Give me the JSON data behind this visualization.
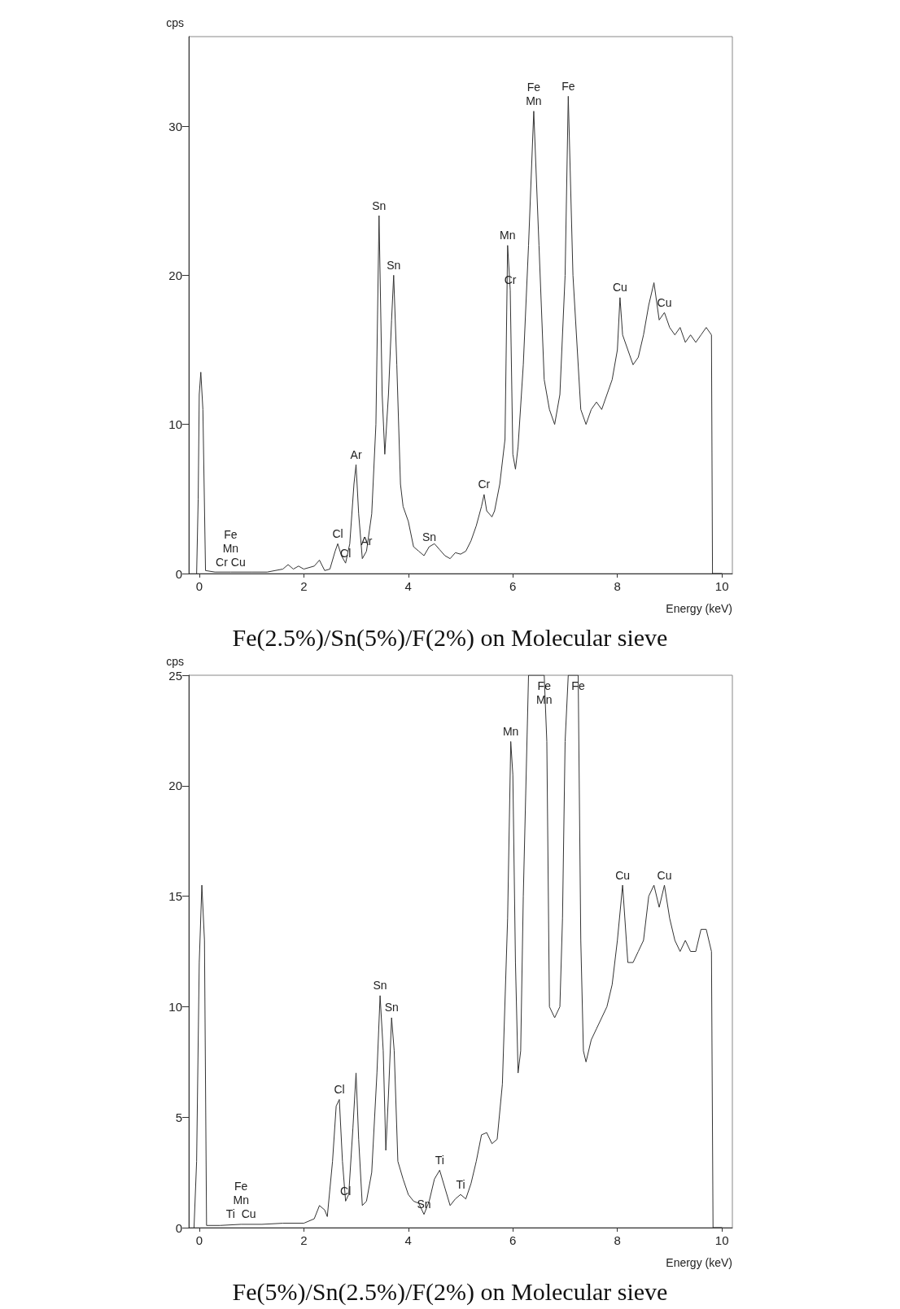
{
  "chart_data": [
    {
      "type": "line",
      "title": "Fe(2.5%)/Sn(5%)/F(2%) on Molecular sieve",
      "xlabel": "Energy (keV)",
      "ylabel": "cps",
      "xlim": [
        -0.2,
        10.2
      ],
      "xticks": [
        0,
        2,
        4,
        6,
        8,
        10
      ],
      "ylim": [
        0,
        36
      ],
      "yticks": [
        0,
        10,
        20,
        30
      ],
      "grid": false,
      "marker": "none",
      "line_style": "solid",
      "series": [
        {
          "color": "#333333",
          "x": [
            -0.05,
            -0.02,
            0,
            0.03,
            0.07,
            0.12,
            0.3,
            0.6,
            1,
            1.3,
            1.6,
            1.7,
            1.8,
            1.9,
            2,
            2.2,
            2.3,
            2.4,
            2.5,
            2.6,
            2.65,
            2.72,
            2.8,
            2.88,
            2.96,
            3,
            3.05,
            3.12,
            3.2,
            3.3,
            3.38,
            3.44,
            3.5,
            3.55,
            3.62,
            3.68,
            3.72,
            3.78,
            3.85,
            3.9,
            4,
            4.1,
            4.2,
            4.3,
            4.4,
            4.5,
            4.6,
            4.7,
            4.8,
            4.9,
            5,
            5.1,
            5.2,
            5.3,
            5.4,
            5.45,
            5.5,
            5.6,
            5.65,
            5.75,
            5.85,
            5.9,
            5.95,
            6,
            6.05,
            6.1,
            6.2,
            6.3,
            6.4,
            6.5,
            6.6,
            6.7,
            6.8,
            6.9,
            7,
            7.06,
            7.15,
            7.3,
            7.4,
            7.5,
            7.6,
            7.7,
            7.8,
            7.9,
            8,
            8.05,
            8.1,
            8.2,
            8.3,
            8.4,
            8.5,
            8.6,
            8.7,
            8.8,
            8.9,
            9,
            9.1,
            9.2,
            9.3,
            9.4,
            9.5,
            9.6,
            9.7,
            9.8,
            9.82,
            10
          ],
          "values": [
            0,
            5,
            12,
            13.5,
            11,
            0.2,
            0.1,
            0.1,
            0.1,
            0.1,
            0.3,
            0.6,
            0.3,
            0.5,
            0.3,
            0.5,
            0.9,
            0.2,
            0.3,
            1.5,
            2,
            1.2,
            0.7,
            2,
            6,
            7.3,
            4,
            1,
            1.5,
            4,
            10,
            24,
            12,
            8,
            12,
            17,
            20,
            14,
            6,
            4.5,
            3.5,
            1.8,
            1.5,
            1.2,
            1.8,
            2,
            1.6,
            1.2,
            1,
            1.4,
            1.3,
            1.5,
            2.2,
            3.2,
            4.5,
            5.3,
            4.2,
            3.8,
            4.2,
            6,
            9,
            22,
            19,
            8,
            7,
            8.5,
            14,
            22,
            31,
            22,
            13,
            11,
            10,
            12,
            20,
            32,
            20,
            11,
            10,
            11,
            11.5,
            11,
            12,
            13,
            15,
            18.5,
            16,
            15,
            14,
            14.5,
            16,
            18,
            19.5,
            17,
            17.5,
            16.5,
            16,
            16.5,
            15.5,
            16,
            15.5,
            16,
            16.5,
            16,
            0,
            0
          ]
        }
      ],
      "annotations": [
        {
          "text": "Fe\nMn",
          "x": 6.4,
          "y": 31
        },
        {
          "text": "Fe",
          "x": 7.06,
          "y": 32
        },
        {
          "text": "Sn",
          "x": 3.44,
          "y": 24
        },
        {
          "text": "Sn",
          "x": 3.72,
          "y": 20
        },
        {
          "text": "Mn",
          "x": 5.9,
          "y": 22
        },
        {
          "text": "Cr",
          "x": 5.95,
          "y": 19
        },
        {
          "text": "Cu",
          "x": 8.05,
          "y": 18.5
        },
        {
          "text": "Cu",
          "x": 8.9,
          "y": 17.5
        },
        {
          "text": "Ar",
          "x": 3,
          "y": 7.3
        },
        {
          "text": "Cr",
          "x": 5.45,
          "y": 5.3
        },
        {
          "text": "Cl",
          "x": 2.65,
          "y": 2
        },
        {
          "text": "Cl",
          "x": 2.8,
          "y": 0.7
        },
        {
          "text": "Ar",
          "x": 3.2,
          "y": 1.5
        },
        {
          "text": "Sn",
          "x": 4.4,
          "y": 1.8
        },
        {
          "text": "Fe\nMn\nCr Cu",
          "x": 0.6,
          "y": 0.1
        }
      ]
    },
    {
      "type": "line",
      "title": "Fe(5%)/Sn(2.5%)/F(2%) on Molecular sieve",
      "xlabel": "Energy (keV)",
      "ylabel": "cps",
      "xlim": [
        -0.2,
        10.2
      ],
      "xticks": [
        0,
        2,
        4,
        6,
        8,
        10
      ],
      "ylim": [
        0,
        25
      ],
      "yticks": [
        0,
        5,
        10,
        15,
        20,
        25
      ],
      "grid": false,
      "marker": "none",
      "line_style": "solid",
      "series": [
        {
          "color": "#333333",
          "x": [
            -0.1,
            -0.05,
            0,
            0.05,
            0.1,
            0.14,
            0.4,
            0.8,
            1.2,
            1.6,
            2,
            2.2,
            2.3,
            2.4,
            2.45,
            2.55,
            2.62,
            2.68,
            2.74,
            2.8,
            2.86,
            2.94,
            3,
            3.05,
            3.12,
            3.2,
            3.3,
            3.4,
            3.46,
            3.52,
            3.57,
            3.62,
            3.68,
            3.73,
            3.8,
            3.9,
            4,
            4.1,
            4.2,
            4.3,
            4.4,
            4.5,
            4.6,
            4.7,
            4.8,
            4.9,
            5,
            5.1,
            5.2,
            5.3,
            5.4,
            5.5,
            5.6,
            5.7,
            5.8,
            5.9,
            5.96,
            6,
            6.05,
            6.1,
            6.15,
            6.2,
            6.3,
            6.6,
            6.65,
            6.7,
            6.8,
            6.9,
            6.95,
            7,
            7.06,
            7.25,
            7.3,
            7.35,
            7.4,
            7.5,
            7.6,
            7.7,
            7.8,
            7.9,
            8,
            8.1,
            8.2,
            8.3,
            8.4,
            8.5,
            8.6,
            8.7,
            8.8,
            8.9,
            9,
            9.1,
            9.2,
            9.3,
            9.4,
            9.5,
            9.6,
            9.7,
            9.8,
            9.83,
            10
          ],
          "values": [
            0,
            3,
            12,
            15.5,
            13,
            0.1,
            0.1,
            0.15,
            0.15,
            0.2,
            0.2,
            0.4,
            1,
            0.8,
            0.5,
            3,
            5.5,
            5.8,
            3,
            1.2,
            1.5,
            4.5,
            7,
            4,
            1,
            1.2,
            2.5,
            7,
            10.5,
            8,
            3.5,
            6,
            9.5,
            8,
            3,
            2.2,
            1.5,
            1.2,
            1.1,
            0.6,
            1.2,
            2.2,
            2.6,
            1.8,
            1,
            1.3,
            1.5,
            1.3,
            2,
            3,
            4.2,
            4.3,
            3.8,
            4,
            6.5,
            14,
            22,
            20.5,
            12,
            7,
            8,
            15,
            25,
            25,
            22,
            10,
            9.5,
            10,
            14,
            22,
            25,
            25,
            13,
            8,
            7.5,
            8.5,
            9,
            9.5,
            10,
            11,
            13,
            15.5,
            12,
            12,
            12.5,
            13,
            15,
            15.5,
            14.5,
            15.5,
            14,
            13,
            12.5,
            13,
            12.5,
            12.5,
            13.5,
            13.5,
            12.5,
            0,
            0
          ]
        }
      ],
      "annotations": [
        {
          "text": "Fe\nMn",
          "x": 6.6,
          "y": 25
        },
        {
          "text": "Fe",
          "x": 7.25,
          "y": 25
        },
        {
          "text": "Mn",
          "x": 5.96,
          "y": 22
        },
        {
          "text": "Cu",
          "x": 8.1,
          "y": 15.5
        },
        {
          "text": "Cu",
          "x": 8.9,
          "y": 15.5
        },
        {
          "text": "Sn",
          "x": 3.46,
          "y": 10.5
        },
        {
          "text": "Sn",
          "x": 3.68,
          "y": 9.5
        },
        {
          "text": "Cl",
          "x": 2.68,
          "y": 5.8
        },
        {
          "text": "Cl",
          "x": 2.8,
          "y": 1.2
        },
        {
          "text": "Ti",
          "x": 4.6,
          "y": 2.6
        },
        {
          "text": "Ti",
          "x": 5,
          "y": 1.5
        },
        {
          "text": "Sn",
          "x": 4.3,
          "y": 0.6
        },
        {
          "text": "Fe\nMn\nTi  Cu",
          "x": 0.8,
          "y": 0.15
        }
      ]
    }
  ]
}
